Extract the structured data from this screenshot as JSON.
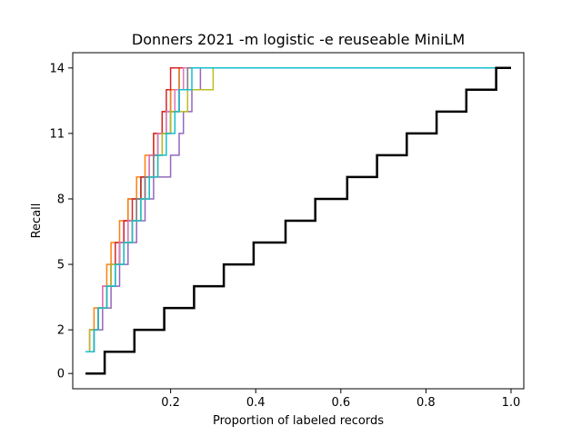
{
  "chart_data": {
    "type": "line",
    "title": "Donners 2021 -m logistic -e reuseable MiniLM",
    "xlabel": "Proportion of labeled records",
    "ylabel": "Recall",
    "xlim": [
      -0.03,
      1.03
    ],
    "ylim": [
      -0.7,
      14.7
    ],
    "x_ticks": [
      0.2,
      0.4,
      0.6,
      0.8,
      1.0
    ],
    "x_tick_labels": [
      "0.2",
      "0.4",
      "0.6",
      "0.8",
      "1.0"
    ],
    "y_ticks": [
      0,
      2,
      5,
      8,
      11,
      14
    ],
    "y_tick_labels": [
      "0",
      "2",
      "5",
      "8",
      "11",
      "14"
    ],
    "grid": false,
    "legend": "none",
    "series": [
      {
        "color": "#1f77b4",
        "thin": true,
        "x": [
          0.0,
          0.01,
          0.03,
          0.04,
          0.05,
          0.07,
          0.08,
          0.09,
          0.1,
          0.11,
          0.13,
          0.15,
          0.16,
          0.17,
          0.18,
          0.2,
          0.22,
          0.28,
          1.0
        ],
        "y": [
          1,
          2,
          3,
          4,
          4,
          5,
          6,
          7,
          8,
          8,
          9,
          10,
          10,
          11,
          12,
          13,
          14,
          14,
          14
        ]
      },
      {
        "color": "#ff7f0e",
        "thin": true,
        "x": [
          0.0,
          0.01,
          0.02,
          0.04,
          0.05,
          0.06,
          0.08,
          0.1,
          0.12,
          0.14,
          0.16,
          0.18,
          0.2,
          0.22,
          1.0
        ],
        "y": [
          1,
          2,
          3,
          4,
          5,
          6,
          7,
          8,
          9,
          10,
          11,
          12,
          13,
          14,
          14
        ]
      },
      {
        "color": "#2ca02c",
        "thin": true,
        "x": [
          0.0,
          0.02,
          0.03,
          0.05,
          0.06,
          0.08,
          0.1,
          0.12,
          0.13,
          0.15,
          0.17,
          0.19,
          0.21,
          0.23,
          1.0
        ],
        "y": [
          1,
          2,
          3,
          4,
          5,
          6,
          7,
          8,
          9,
          10,
          11,
          12,
          13,
          14,
          14
        ]
      },
      {
        "color": "#d62728",
        "thin": true,
        "x": [
          0.0,
          0.01,
          0.03,
          0.04,
          0.06,
          0.07,
          0.09,
          0.11,
          0.13,
          0.15,
          0.16,
          0.18,
          0.19,
          0.2,
          1.0
        ],
        "y": [
          1,
          2,
          3,
          4,
          5,
          6,
          7,
          8,
          9,
          10,
          11,
          12,
          13,
          14,
          14
        ]
      },
      {
        "color": "#9467bd",
        "thin": true,
        "x": [
          0.0,
          0.02,
          0.04,
          0.06,
          0.08,
          0.1,
          0.12,
          0.14,
          0.16,
          0.2,
          0.22,
          0.23,
          0.25,
          0.27,
          1.0
        ],
        "y": [
          1,
          2,
          3,
          4,
          5,
          6,
          7,
          8,
          9,
          10,
          11,
          12,
          13,
          14,
          14
        ]
      },
      {
        "color": "#8c564b",
        "thin": true,
        "x": [
          0.0,
          0.01,
          0.03,
          0.05,
          0.07,
          0.08,
          0.1,
          0.12,
          0.14,
          0.16,
          0.18,
          0.2,
          0.22,
          0.24,
          1.0
        ],
        "y": [
          1,
          2,
          3,
          4,
          5,
          6,
          7,
          8,
          9,
          10,
          11,
          12,
          13,
          14,
          14
        ]
      },
      {
        "color": "#e377c2",
        "thin": true,
        "x": [
          0.0,
          0.01,
          0.03,
          0.04,
          0.06,
          0.08,
          0.1,
          0.12,
          0.14,
          0.15,
          0.17,
          0.19,
          0.21,
          0.23,
          1.0
        ],
        "y": [
          1,
          2,
          3,
          4,
          5,
          6,
          7,
          8,
          9,
          10,
          11,
          12,
          13,
          14,
          14
        ]
      },
      {
        "color": "#7f7f7f",
        "thin": true,
        "x": [
          0.0,
          0.02,
          0.03,
          0.05,
          0.07,
          0.09,
          0.11,
          0.12,
          0.14,
          0.16,
          0.18,
          0.2,
          0.22,
          0.24,
          1.0
        ],
        "y": [
          1,
          2,
          3,
          4,
          5,
          6,
          7,
          8,
          9,
          10,
          11,
          12,
          13,
          14,
          14
        ]
      },
      {
        "color": "#bcbd22",
        "thin": true,
        "x": [
          0.0,
          0.01,
          0.03,
          0.05,
          0.06,
          0.09,
          0.11,
          0.13,
          0.15,
          0.17,
          0.18,
          0.2,
          0.24,
          0.3,
          1.0
        ],
        "y": [
          1,
          2,
          3,
          4,
          5,
          6,
          7,
          8,
          9,
          10,
          11,
          12,
          13,
          14,
          14
        ]
      },
      {
        "color": "#17becf",
        "thin": true,
        "x": [
          0.0,
          0.02,
          0.03,
          0.05,
          0.07,
          0.09,
          0.11,
          0.13,
          0.15,
          0.17,
          0.19,
          0.21,
          0.22,
          0.25,
          1.0
        ],
        "y": [
          1,
          2,
          3,
          4,
          5,
          6,
          7,
          8,
          9,
          10,
          11,
          12,
          13,
          14,
          14
        ]
      },
      {
        "color": "#000000",
        "thin": false,
        "x": [
          0.0,
          0.045,
          0.115,
          0.185,
          0.255,
          0.325,
          0.395,
          0.47,
          0.54,
          0.615,
          0.685,
          0.755,
          0.825,
          0.895,
          0.965,
          1.0
        ],
        "y": [
          0,
          1,
          2,
          3,
          4,
          5,
          6,
          7,
          8,
          9,
          10,
          11,
          12,
          13,
          14,
          14
        ]
      }
    ]
  }
}
